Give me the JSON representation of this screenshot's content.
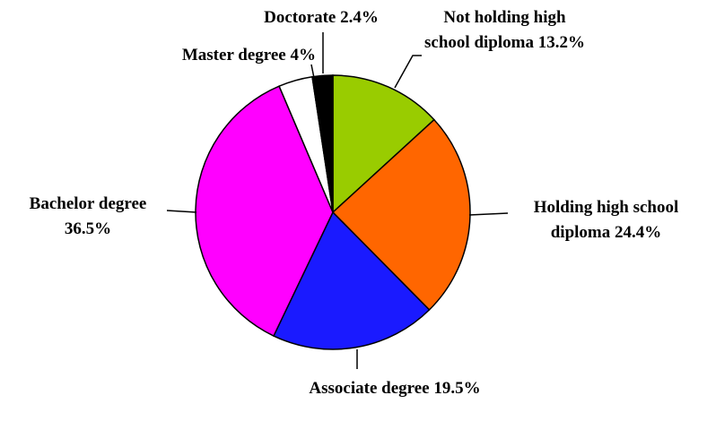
{
  "chart_data": {
    "type": "pie",
    "categories": [
      "Not holding high school diploma",
      "Holding high school diploma",
      "Associate degree",
      "Bachelor degree",
      "Master degree",
      "Doctorate"
    ],
    "values": [
      13.2,
      24.4,
      19.5,
      36.5,
      4,
      2.4
    ],
    "value_labels": [
      "13.2%",
      "24.4%",
      "19.5%",
      "36.5%",
      "4%",
      "2.4%"
    ],
    "colors": [
      "#99cc00",
      "#ff6600",
      "#1a1aff",
      "#ff00ff",
      "#ffffff",
      "#000000"
    ]
  }
}
